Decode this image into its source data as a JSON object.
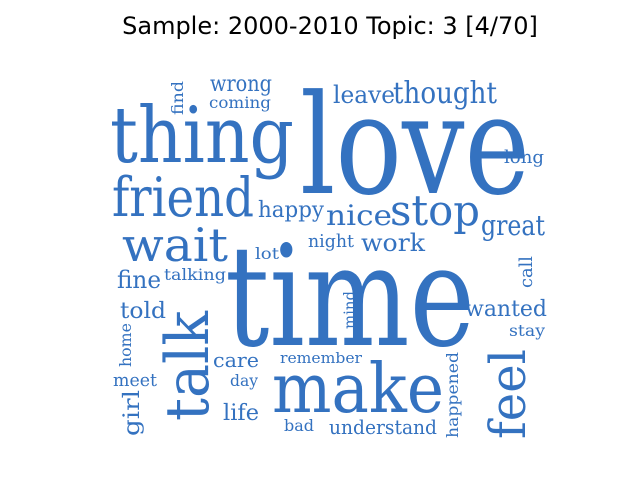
{
  "figure": {
    "title": "Sample: 2000-2010 Topic: 3 [4/70]",
    "word_color": "#3472c0",
    "background": "#ffffff"
  },
  "words": [
    {
      "text": "time"
    },
    {
      "text": "love"
    },
    {
      "text": "thing"
    },
    {
      "text": "make"
    },
    {
      "text": "friend"
    },
    {
      "text": "talk"
    },
    {
      "text": "feel"
    },
    {
      "text": "wait"
    },
    {
      "text": "stop"
    },
    {
      "text": "thought"
    },
    {
      "text": "great"
    },
    {
      "text": "nice"
    },
    {
      "text": "work"
    },
    {
      "text": "wrong"
    },
    {
      "text": "leave"
    },
    {
      "text": "happy"
    },
    {
      "text": "wanted"
    },
    {
      "text": "fine"
    },
    {
      "text": "told"
    },
    {
      "text": "life"
    },
    {
      "text": "understand"
    },
    {
      "text": "care"
    },
    {
      "text": "girl"
    },
    {
      "text": "night"
    },
    {
      "text": "long"
    },
    {
      "text": "call"
    },
    {
      "text": "meet"
    },
    {
      "text": "coming"
    },
    {
      "text": "find"
    },
    {
      "text": "talking"
    },
    {
      "text": "lot"
    },
    {
      "text": "mind"
    },
    {
      "text": "remember"
    },
    {
      "text": "home"
    },
    {
      "text": "day"
    },
    {
      "text": "bad"
    },
    {
      "text": "happened"
    },
    {
      "text": "stay"
    }
  ]
}
